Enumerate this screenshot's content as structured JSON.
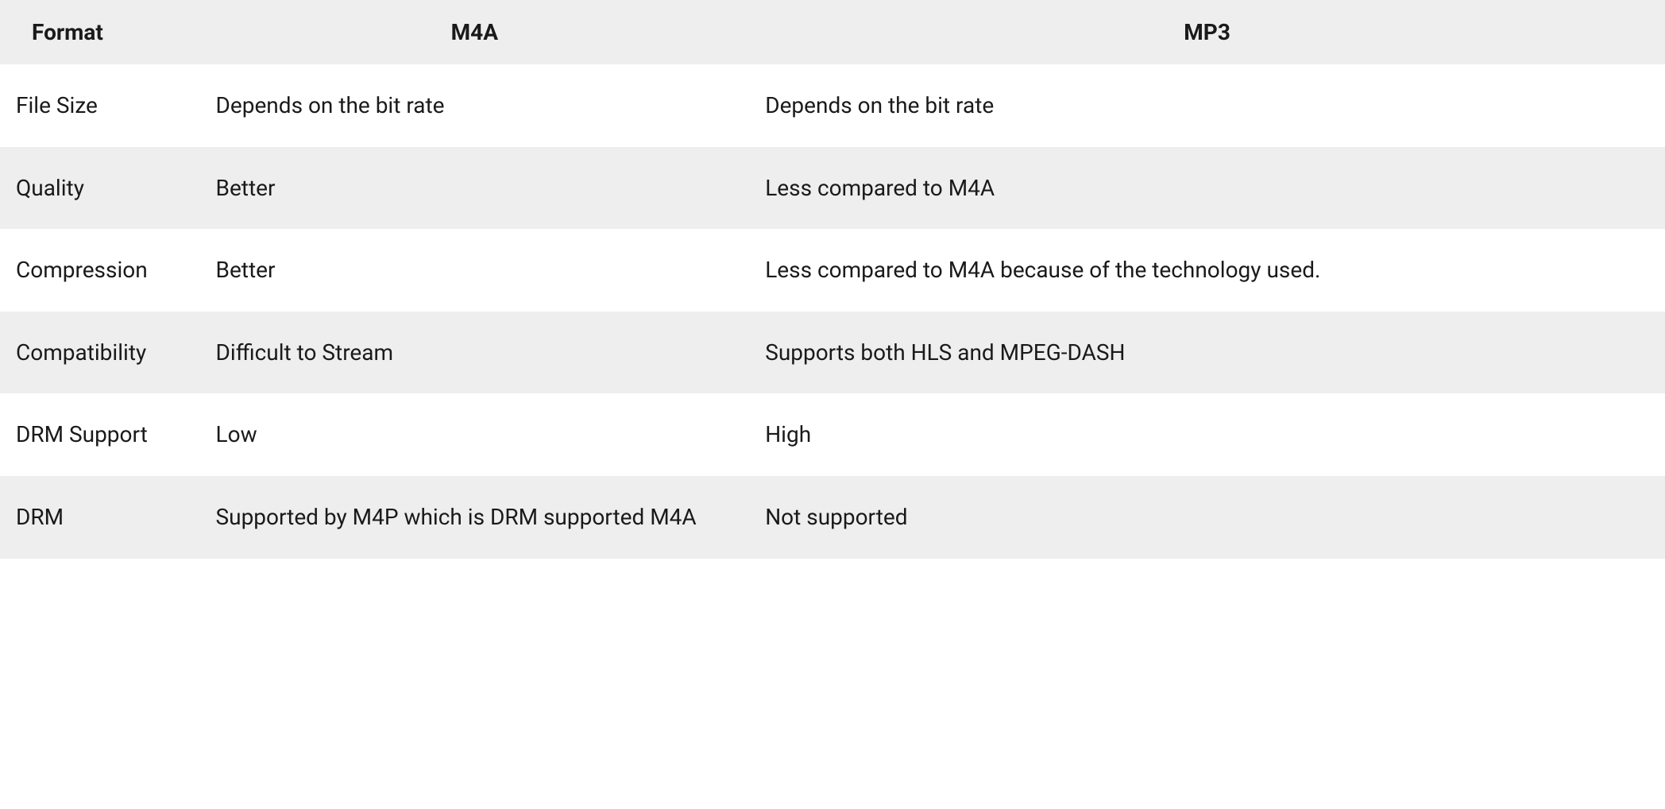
{
  "table": {
    "columns": [
      {
        "label": "Format",
        "width_pct": 12,
        "align": "left"
      },
      {
        "label": "M4A",
        "width_pct": 33,
        "align": "center"
      },
      {
        "label": "MP3",
        "width_pct": 55,
        "align": "center"
      }
    ],
    "rows": [
      {
        "label": "File Size",
        "m4a": "Depends on the bit rate",
        "mp3": "Depends on the bit rate"
      },
      {
        "label": "Quality",
        "m4a": "Better",
        "mp3": "Less compared to M4A"
      },
      {
        "label": "Compression",
        "m4a": "Better",
        "mp3": "Less compared to M4A because of the technology used."
      },
      {
        "label": "Compatibility",
        "m4a": "Difficult to Stream",
        "mp3": "Supports both HLS and MPEG-DASH"
      },
      {
        "label": "DRM Support",
        "m4a": "Low",
        "mp3": "High"
      },
      {
        "label": "DRM",
        "m4a": "Supported by M4P which is DRM supported M4A",
        "mp3": "Not supported"
      }
    ],
    "styling": {
      "header_background": "#eeeeee",
      "row_odd_background": "#ffffff",
      "row_even_background": "#eeeeee",
      "text_color": "#1a1a1a",
      "header_fontsize": 28,
      "cell_fontsize": 28,
      "header_fontweight": 700,
      "cell_fontweight": 400,
      "line_height": 1.7,
      "font_family": "Segoe UI"
    }
  }
}
